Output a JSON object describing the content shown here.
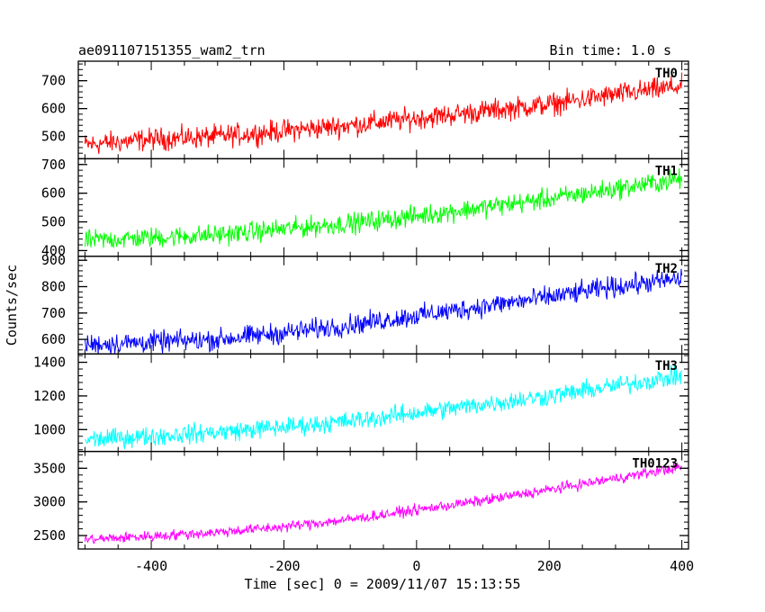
{
  "chart_data": {
    "type": "line",
    "title": "ae091107151355_wam2_trn",
    "bin_time": "Bin time: 1.0 s",
    "xlabel": "Time [sec] 0 = 2009/11/07 15:13:55",
    "ylabel": "Counts/sec",
    "xlim": [
      -510,
      410
    ],
    "xticks": [
      -400,
      -200,
      0,
      200,
      400
    ],
    "grid": false,
    "panels": [
      {
        "name": "TH0",
        "color": "#ff0000",
        "ylim": [
          420,
          770
        ],
        "yticks": [
          500,
          600,
          700
        ],
        "x": [
          -500,
          -400,
          -300,
          -200,
          -100,
          0,
          100,
          200,
          300,
          400
        ],
        "values": [
          470,
          490,
          500,
          520,
          540,
          565,
          590,
          615,
          650,
          680
        ],
        "noise": 28
      },
      {
        "name": "TH1",
        "color": "#00ff00",
        "ylim": [
          380,
          720
        ],
        "yticks": [
          400,
          500,
          600,
          700
        ],
        "x": [
          -500,
          -400,
          -300,
          -200,
          -100,
          0,
          100,
          200,
          300,
          400
        ],
        "values": [
          435,
          445,
          455,
          475,
          495,
          520,
          550,
          580,
          615,
          650
        ],
        "noise": 25
      },
      {
        "name": "TH2",
        "color": "#0000ff",
        "ylim": [
          545,
          915
        ],
        "yticks": [
          600,
          700,
          800,
          900
        ],
        "x": [
          -500,
          -400,
          -300,
          -200,
          -100,
          0,
          100,
          200,
          300,
          400
        ],
        "values": [
          580,
          590,
          600,
          625,
          655,
          690,
          725,
          760,
          800,
          830
        ],
        "noise": 28
      },
      {
        "name": "TH3",
        "color": "#00ffff",
        "ylim": [
          870,
          1450
        ],
        "yticks": [
          1000,
          1200,
          1400
        ],
        "x": [
          -500,
          -400,
          -300,
          -200,
          -100,
          0,
          100,
          200,
          300,
          400
        ],
        "values": [
          940,
          960,
          985,
          1015,
          1050,
          1100,
          1150,
          1200,
          1260,
          1320
        ],
        "noise": 40
      },
      {
        "name": "TH0123",
        "color": "#ff00ff",
        "ylim": [
          2300,
          3750
        ],
        "yticks": [
          2500,
          3000,
          3500
        ],
        "x": [
          -500,
          -400,
          -300,
          -200,
          -100,
          0,
          100,
          200,
          300,
          400
        ],
        "values": [
          2440,
          2490,
          2550,
          2630,
          2740,
          2880,
          3020,
          3180,
          3350,
          3520
        ],
        "noise": 55
      }
    ]
  }
}
